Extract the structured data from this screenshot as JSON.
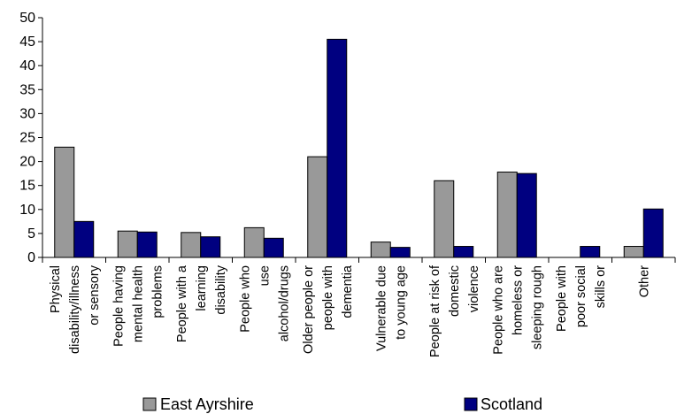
{
  "chart_data": {
    "type": "bar",
    "categories": [
      [
        "Physical",
        "disability/illness",
        "or sensory"
      ],
      [
        "People having",
        "mental health",
        "problems"
      ],
      [
        "People with a",
        "learning",
        "disability"
      ],
      [
        "People who",
        "use",
        "alcohol/drugs"
      ],
      [
        "Older people or",
        "people with",
        "dementia"
      ],
      [
        "Vulnerable due",
        "to young age"
      ],
      [
        "People at risk of",
        "domestic",
        "violence"
      ],
      [
        "People who are",
        "homeless or",
        "sleeping rough"
      ],
      [
        "People with",
        "poor social",
        "skills or"
      ],
      [
        "Other"
      ]
    ],
    "series": [
      {
        "name": "East Ayrshire",
        "color": "#999999",
        "values": [
          23,
          5.5,
          5.2,
          6.2,
          21,
          3.2,
          16,
          17.8,
          0,
          2.3
        ]
      },
      {
        "name": "Scotland",
        "color": "#000080",
        "values": [
          7.5,
          5.3,
          4.3,
          4,
          45.5,
          2.1,
          2.3,
          17.5,
          2.3,
          10.1
        ]
      }
    ],
    "ylim": [
      0,
      50
    ],
    "yticks": [
      0,
      5,
      10,
      15,
      20,
      25,
      30,
      35,
      40,
      45,
      50
    ],
    "legend_position": "bottom",
    "grid": false
  }
}
